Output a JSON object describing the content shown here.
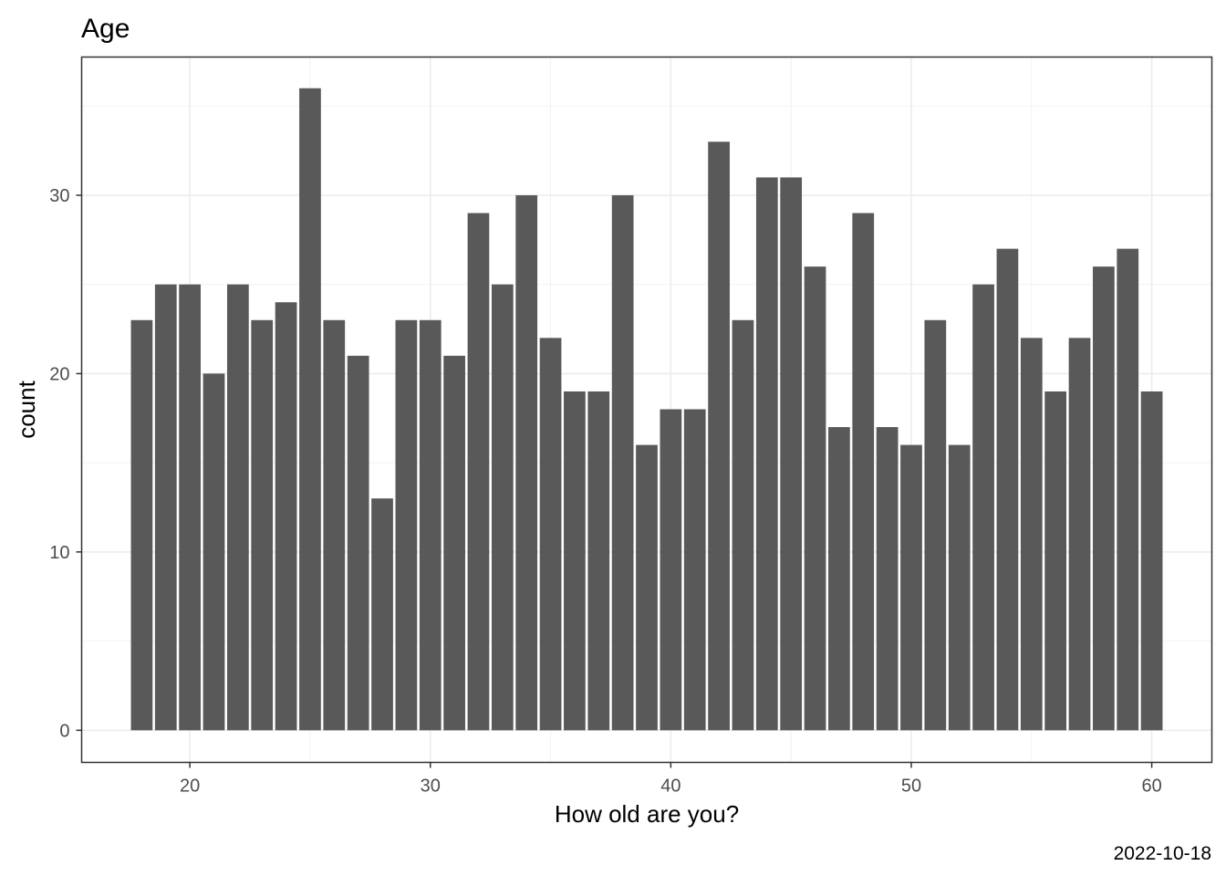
{
  "chart_data": {
    "type": "bar",
    "title": "Age",
    "xlabel": "How old are you?",
    "ylabel": "count",
    "caption": "2022-10-18",
    "x": [
      18,
      19,
      20,
      21,
      22,
      23,
      24,
      25,
      26,
      27,
      28,
      29,
      30,
      31,
      32,
      33,
      34,
      35,
      36,
      37,
      38,
      39,
      40,
      41,
      42,
      43,
      44,
      45,
      46,
      47,
      48,
      49,
      50,
      51,
      52,
      53,
      54,
      55,
      56,
      57,
      58,
      59,
      60
    ],
    "values": [
      23,
      25,
      25,
      20,
      25,
      23,
      24,
      36,
      23,
      21,
      13,
      23,
      23,
      21,
      29,
      25,
      30,
      22,
      19,
      19,
      30,
      16,
      18,
      18,
      33,
      23,
      31,
      31,
      26,
      17,
      29,
      17,
      16,
      23,
      16,
      25,
      27,
      22,
      19,
      22,
      26,
      27,
      19
    ],
    "xlim": [
      15.5,
      62.5
    ],
    "ylim": [
      -1.8,
      37.75
    ],
    "x_ticks": [
      20,
      30,
      40,
      50,
      60
    ],
    "y_ticks": [
      0,
      10,
      20,
      30
    ],
    "grid": true,
    "bar_color": "#595959",
    "theme": "bw"
  }
}
